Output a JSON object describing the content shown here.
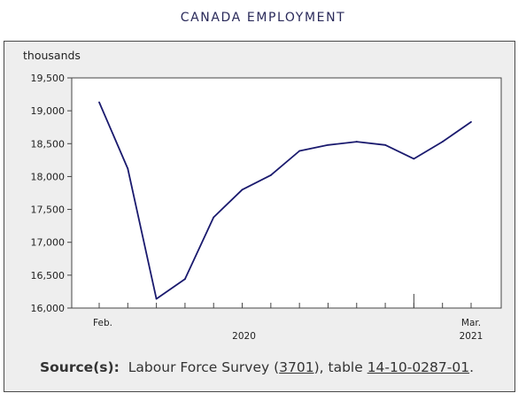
{
  "page_title": "CANADA EMPLOYMENT",
  "chart_data": {
    "type": "line",
    "title": "CANADA EMPLOYMENT",
    "ylabel": "thousands",
    "xlabel": "",
    "ylim": [
      16000,
      19500
    ],
    "yticks": [
      16000,
      16500,
      17000,
      17500,
      18000,
      18500,
      19000,
      19500
    ],
    "ytick_labels": [
      "16,000",
      "16,500",
      "17,000",
      "17,500",
      "18,000",
      "18,500",
      "19,000",
      "19,500"
    ],
    "x": [
      "2020-02",
      "2020-03",
      "2020-04",
      "2020-05",
      "2020-06",
      "2020-07",
      "2020-08",
      "2020-09",
      "2020-10",
      "2020-11",
      "2020-12",
      "2021-01",
      "2021-02",
      "2021-03"
    ],
    "x_tick_labels": {
      "first_month": "Feb.",
      "year_2020": "2020",
      "last_month": "Mar.",
      "year_2021": "2021"
    },
    "series": [
      {
        "values": [
          19130,
          18120,
          16140,
          16440,
          17380,
          17800,
          18020,
          18390,
          18480,
          18530,
          18480,
          18270,
          18530,
          18830
        ],
        "color": "#1a1a6e"
      }
    ],
    "grid": false
  },
  "source": {
    "label": "Source(s):",
    "text_before": "Labour Force Survey (",
    "survey_link": "3701",
    "text_middle": "), table ",
    "table_link": "14-10-0287-01",
    "text_after": "."
  },
  "colors": {
    "panel_bg": "#eeeeee",
    "line": "#1a1a6e",
    "title": "#2a2a5a"
  }
}
